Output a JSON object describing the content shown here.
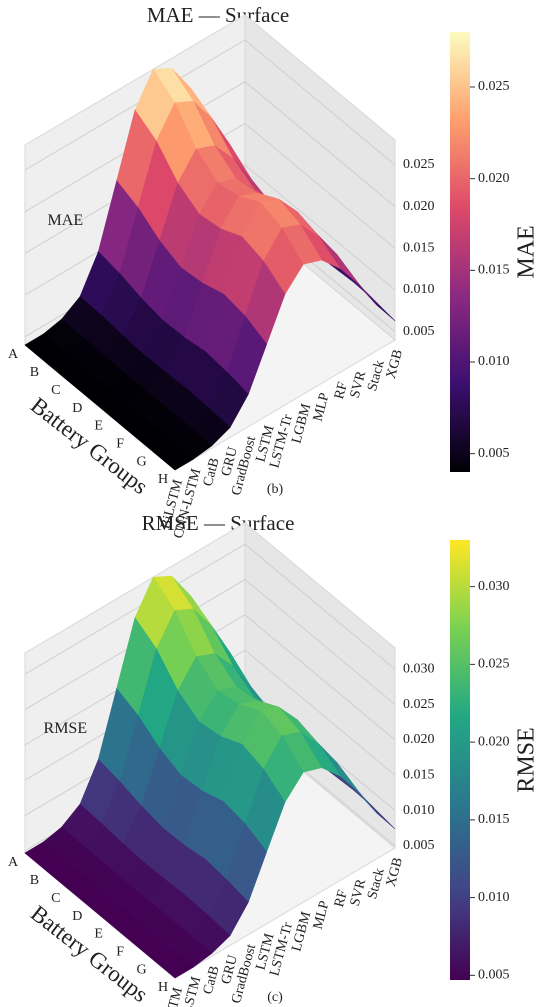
{
  "chart_data": [
    {
      "type": "surface",
      "title": "MAE — Surface",
      "caption": "(b)",
      "x": [
        "BiLSTM",
        "CNN-LSTM",
        "CatB",
        "GRU",
        "GradBoost",
        "LSTM",
        "LSTM-Tr",
        "LGBM",
        "MLP",
        "RF",
        "SVR",
        "Stack",
        "XGB"
      ],
      "y": [
        "A",
        "B",
        "C",
        "D",
        "E",
        "F",
        "G",
        "H"
      ],
      "ylabel": "Battery Groups",
      "zlabel": "MAE",
      "values": [
        [
          0.004,
          0.004,
          0.0045,
          0.0059,
          0.01,
          0.0172,
          0.0244,
          0.028,
          0.0268,
          0.0232,
          0.0184,
          0.0124,
          0.0076
        ],
        [
          0.004,
          0.004,
          0.0044,
          0.0058,
          0.0095,
          0.0161,
          0.0228,
          0.0261,
          0.025,
          0.0217,
          0.0172,
          0.0117,
          0.0073
        ],
        [
          0.004,
          0.004,
          0.0044,
          0.0055,
          0.0087,
          0.0143,
          0.0199,
          0.0227,
          0.0218,
          0.019,
          0.0152,
          0.0106,
          0.0068
        ],
        [
          0.004,
          0.004,
          0.0043,
          0.0053,
          0.0082,
          0.0132,
          0.0183,
          0.0208,
          0.02,
          0.0174,
          0.0141,
          0.0099,
          0.0065
        ],
        [
          0.004,
          0.004,
          0.0043,
          0.0054,
          0.0083,
          0.0135,
          0.0187,
          0.0213,
          0.0204,
          0.0178,
          0.0144,
          0.01,
          0.0066
        ],
        [
          0.004,
          0.004,
          0.0044,
          0.0055,
          0.0087,
          0.0143,
          0.0199,
          0.0227,
          0.0218,
          0.019,
          0.0152,
          0.0106,
          0.0068
        ],
        [
          0.004,
          0.004,
          0.0044,
          0.0054,
          0.0084,
          0.0138,
          0.0191,
          0.0218,
          0.0209,
          0.0182,
          0.0147,
          0.0102,
          0.0067
        ],
        [
          0.004,
          0.004,
          0.0043,
          0.0052,
          0.0079,
          0.0126,
          0.0173,
          0.0196,
          0.0188,
          0.0165,
          0.0134,
          0.0095,
          0.0063
        ]
      ],
      "zlim": [
        0.004,
        0.028
      ],
      "zticks": [
        0.005,
        {
          "value": 0.01,
          "label": "0.010"
        },
        0.015,
        {
          "value": 0.02,
          "label": "0.020"
        },
        0.025
      ],
      "colorscale": [
        "#000004",
        "#3b0f70",
        "#8c2981",
        "#de4968",
        "#fe9f6d",
        "#fcfdbf"
      ]
    },
    {
      "type": "surface",
      "title": "RMSE — Surface",
      "caption": "(c)",
      "x": [
        "BiLSTM",
        "CNN-LSTM",
        "CatB",
        "GRU",
        "GradBoost",
        "LSTM",
        "LSTM-Tr",
        "LGBM",
        "MLP",
        "RF",
        "SVR",
        "Stack",
        "XGB"
      ],
      "y": [
        "A",
        "B",
        "C",
        "D",
        "E",
        "F",
        "G",
        "H"
      ],
      "ylabel": "Battery Groups",
      "zlabel": "RMSE",
      "values": [
        [
          0.0047,
          0.0047,
          0.0053,
          0.007,
          0.0118,
          0.0203,
          0.0288,
          0.033,
          0.0316,
          0.0274,
          0.0217,
          0.0146,
          0.009
        ],
        [
          0.0047,
          0.0047,
          0.0052,
          0.0068,
          0.0112,
          0.019,
          0.0269,
          0.0308,
          0.0295,
          0.0256,
          0.0203,
          0.0138,
          0.0086
        ],
        [
          0.0047,
          0.0047,
          0.0052,
          0.0065,
          0.0103,
          0.0169,
          0.0235,
          0.0268,
          0.0257,
          0.0224,
          0.0179,
          0.0125,
          0.008
        ],
        [
          0.0047,
          0.0047,
          0.0051,
          0.0063,
          0.0097,
          0.0156,
          0.0216,
          0.0245,
          0.0236,
          0.0205,
          0.0166,
          0.0117,
          0.0077
        ],
        [
          0.0047,
          0.0047,
          0.0051,
          0.0064,
          0.0098,
          0.0159,
          0.0221,
          0.0251,
          0.0241,
          0.021,
          0.017,
          0.0118,
          0.0078
        ],
        [
          0.0047,
          0.0047,
          0.0052,
          0.0065,
          0.0103,
          0.0169,
          0.0235,
          0.0268,
          0.0257,
          0.0224,
          0.0179,
          0.0125,
          0.008
        ],
        [
          0.0047,
          0.0047,
          0.0052,
          0.0064,
          0.0099,
          0.0163,
          0.0225,
          0.0257,
          0.0247,
          0.0215,
          0.0173,
          0.012,
          0.0079
        ],
        [
          0.0047,
          0.0047,
          0.0051,
          0.0061,
          0.0093,
          0.0149,
          0.0204,
          0.0231,
          0.0222,
          0.0195,
          0.0158,
          0.0112,
          0.0074
        ]
      ],
      "zlim": [
        0.0047,
        0.033
      ],
      "zticks": [
        0.005,
        {
          "value": 0.01,
          "label": "0.010"
        },
        0.015,
        {
          "value": 0.02,
          "label": "0.020"
        },
        0.025,
        {
          "value": 0.03,
          "label": "0.030"
        }
      ],
      "colorscale": [
        "#440154",
        "#414487",
        "#2a788e",
        "#22a884",
        "#7ad151",
        "#fde725"
      ]
    }
  ]
}
